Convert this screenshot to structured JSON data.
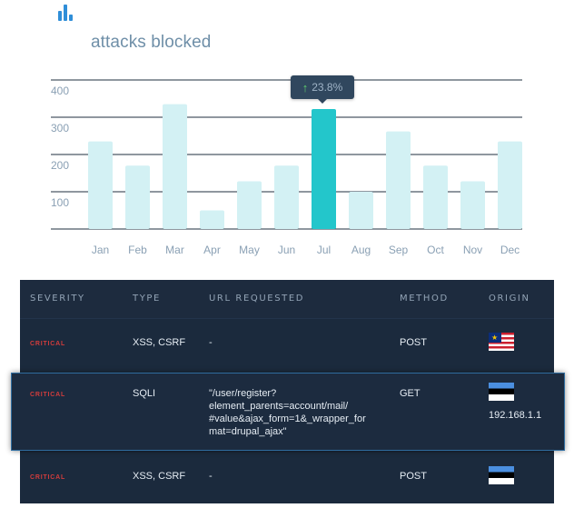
{
  "widget": {
    "title": "attacks blocked"
  },
  "tooltip": {
    "value": "23.8%"
  },
  "chart_data": {
    "type": "bar",
    "categories": [
      "Jan",
      "Feb",
      "Mar",
      "Apr",
      "May",
      "Jun",
      "Jul",
      "Aug",
      "Sep",
      "Oct",
      "Nov",
      "Dec"
    ],
    "values": [
      235,
      170,
      335,
      50,
      128,
      170,
      322,
      100,
      262,
      170,
      128,
      235
    ],
    "ylim": [
      0,
      400
    ],
    "yticks": [
      100,
      200,
      300,
      400
    ],
    "highlighted": "Jul",
    "grid": true,
    "colors": {
      "bar": "#d3f1f4",
      "highlight": "#23c6cb",
      "grid": "#1f2f3f"
    }
  },
  "table": {
    "columns": [
      "SEVERITY",
      "TYPE",
      "URL REQUESTED",
      "METHOD",
      "ORIGIN"
    ],
    "rows": [
      {
        "severity": "CRITICAL",
        "type": "XSS, CSRF",
        "url": "-",
        "method": "POST",
        "origin_flag": "malaysia-flag-icon",
        "origin_ip": ""
      },
      {
        "severity": "CRITICAL",
        "type": "SQLI",
        "url_lines": [
          "\"/user/register?",
          "element_parents=account/mail/",
          "#value&ajax_form=1&_wrapper_for",
          "mat=drupal_ajax\""
        ],
        "method": "GET",
        "origin_flag": "estonia-flag-icon",
        "origin_ip": "192.168.1.1"
      },
      {
        "severity": "CRITICAL",
        "type": "XSS, CSRF",
        "url": "-",
        "method": "POST",
        "origin_flag": "estonia-flag-icon",
        "origin_ip": ""
      }
    ],
    "colors": {
      "severity_critical": "#d23c3c",
      "background": "#1a2638",
      "highlight_border": "#2f6da0"
    }
  }
}
